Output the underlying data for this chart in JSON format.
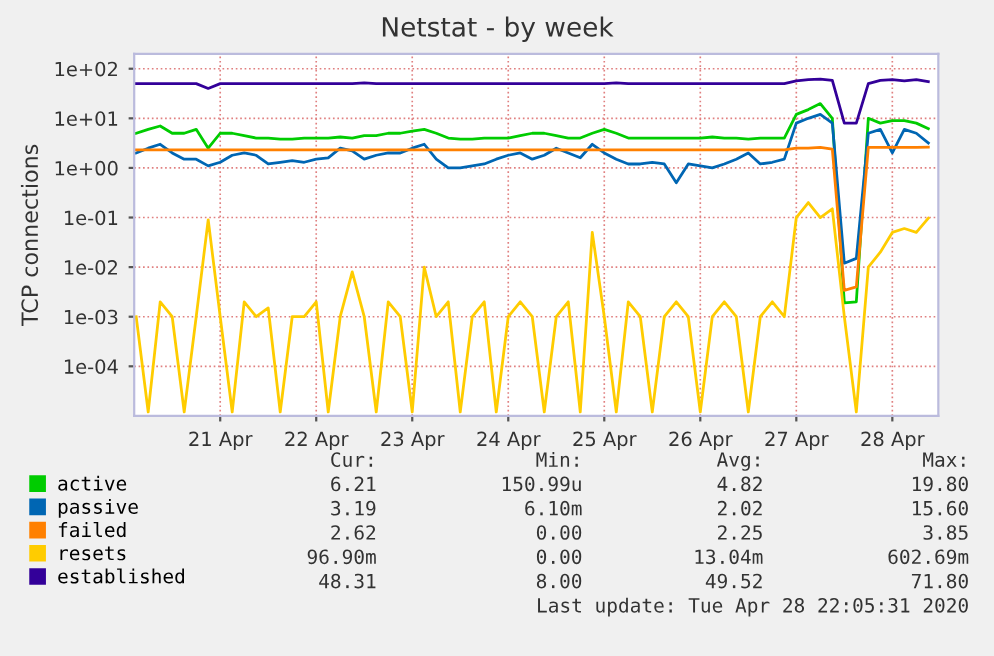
{
  "chart_data": {
    "type": "line",
    "title": "Netstat - by week",
    "ylabel": "TCP connections",
    "x": [
      "2020-04-20T15:00",
      "2020-04-20T18:00",
      "2020-04-20T21:00",
      "2020-04-21T00:00",
      "2020-04-21T03:00",
      "2020-04-21T06:00",
      "2020-04-21T09:00",
      "2020-04-21T12:00",
      "2020-04-21T15:00",
      "2020-04-21T18:00",
      "2020-04-21T21:00",
      "2020-04-22T00:00",
      "2020-04-22T03:00",
      "2020-04-22T06:00",
      "2020-04-22T09:00",
      "2020-04-22T12:00",
      "2020-04-22T15:00",
      "2020-04-22T18:00",
      "2020-04-22T21:00",
      "2020-04-23T00:00",
      "2020-04-23T03:00",
      "2020-04-23T06:00",
      "2020-04-23T09:00",
      "2020-04-23T12:00",
      "2020-04-23T15:00",
      "2020-04-23T18:00",
      "2020-04-23T21:00",
      "2020-04-24T00:00",
      "2020-04-24T03:00",
      "2020-04-24T06:00",
      "2020-04-24T09:00",
      "2020-04-24T12:00",
      "2020-04-24T15:00",
      "2020-04-24T18:00",
      "2020-04-24T21:00",
      "2020-04-25T00:00",
      "2020-04-25T03:00",
      "2020-04-25T06:00",
      "2020-04-25T09:00",
      "2020-04-25T12:00",
      "2020-04-25T15:00",
      "2020-04-25T18:00",
      "2020-04-25T21:00",
      "2020-04-26T00:00",
      "2020-04-26T03:00",
      "2020-04-26T06:00",
      "2020-04-26T09:00",
      "2020-04-26T12:00",
      "2020-04-26T15:00",
      "2020-04-26T18:00",
      "2020-04-26T21:00",
      "2020-04-27T00:00",
      "2020-04-27T03:00",
      "2020-04-27T06:00",
      "2020-04-27T09:00",
      "2020-04-27T12:00",
      "2020-04-27T15:00",
      "2020-04-27T18:00",
      "2020-04-27T21:00",
      "2020-04-28T00:00",
      "2020-04-28T03:00",
      "2020-04-28T06:00",
      "2020-04-28T09:00",
      "2020-04-28T12:00",
      "2020-04-28T15:00",
      "2020-04-28T18:00",
      "2020-04-28T21:00"
    ],
    "series": [
      {
        "name": "active",
        "color": "#00cc00",
        "values": [
          5,
          6,
          7,
          5,
          5,
          6,
          2.5,
          5,
          5,
          4.5,
          4,
          4,
          3.8,
          3.8,
          4,
          4,
          4,
          4.2,
          4,
          4.5,
          4.5,
          5,
          5,
          5.5,
          6,
          5,
          4,
          3.8,
          3.8,
          4,
          4,
          4,
          4.5,
          5,
          5,
          4.5,
          4,
          4,
          5,
          6,
          5,
          4,
          4,
          4,
          4,
          4,
          4,
          4,
          4.2,
          4,
          4,
          3.8,
          4,
          4,
          4,
          12,
          15,
          19.8,
          10,
          0.0019,
          0.002,
          10,
          8,
          9,
          9,
          8,
          6.2
        ]
      },
      {
        "name": "passive",
        "color": "#0066b3",
        "values": [
          2,
          2.5,
          3,
          2,
          1.5,
          1.5,
          1.1,
          1.3,
          1.8,
          2,
          1.8,
          1.2,
          1.3,
          1.4,
          1.3,
          1.5,
          1.6,
          2.5,
          2.2,
          1.5,
          1.8,
          2,
          2,
          2.5,
          3,
          1.5,
          1,
          1,
          1.1,
          1.2,
          1.5,
          1.8,
          2,
          1.5,
          1.8,
          2.5,
          2,
          1.6,
          3,
          2,
          1.5,
          1.2,
          1.2,
          1.3,
          1.2,
          0.5,
          1.2,
          1.1,
          1,
          1.2,
          1.5,
          2,
          1.2,
          1.3,
          1.5,
          8,
          10,
          12,
          8,
          0.012,
          0.015,
          5,
          6,
          2,
          6,
          5,
          3.19
        ]
      },
      {
        "name": "failed",
        "color": "#ff8000",
        "values": [
          2.3,
          2.3,
          2.3,
          2.3,
          2.3,
          2.3,
          2.3,
          2.3,
          2.3,
          2.3,
          2.3,
          2.3,
          2.3,
          2.3,
          2.3,
          2.3,
          2.3,
          2.3,
          2.3,
          2.3,
          2.3,
          2.3,
          2.3,
          2.3,
          2.3,
          2.3,
          2.3,
          2.3,
          2.3,
          2.3,
          2.3,
          2.3,
          2.3,
          2.3,
          2.3,
          2.3,
          2.3,
          2.3,
          2.3,
          2.3,
          2.3,
          2.3,
          2.3,
          2.3,
          2.3,
          2.3,
          2.3,
          2.3,
          2.3,
          2.3,
          2.3,
          2.3,
          2.3,
          2.3,
          2.3,
          2.5,
          2.5,
          2.6,
          2.4,
          0.0034,
          0.004,
          2.6,
          2.6,
          2.6,
          2.6,
          2.6,
          2.62
        ]
      },
      {
        "name": "resets",
        "color": "#ffcc00",
        "values": [
          0.001,
          1.2e-05,
          0.002,
          0.001,
          1.2e-05,
          0.001,
          0.09,
          0.001,
          1.2e-05,
          0.002,
          0.001,
          0.0015,
          1.2e-05,
          0.001,
          0.001,
          0.002,
          1.2e-05,
          0.001,
          0.008,
          0.001,
          1.2e-05,
          0.002,
          0.001,
          1.2e-05,
          0.01,
          0.001,
          0.002,
          1.2e-05,
          0.001,
          0.002,
          1.2e-05,
          0.001,
          0.002,
          0.001,
          1.2e-05,
          0.001,
          0.002,
          1.2e-05,
          0.05,
          0.001,
          1.2e-05,
          0.002,
          0.001,
          1.2e-05,
          0.001,
          0.002,
          0.001,
          1.2e-05,
          0.001,
          0.002,
          0.001,
          1.2e-05,
          0.001,
          0.002,
          0.001,
          0.1,
          0.2,
          0.1,
          0.15,
          0.001,
          1.2e-05,
          0.01,
          0.02,
          0.05,
          0.06,
          0.05,
          0.0969
        ]
      },
      {
        "name": "established",
        "color": "#330099",
        "values": [
          50,
          50,
          50,
          50,
          50,
          50,
          40,
          50,
          50,
          50,
          50,
          50,
          50,
          50,
          50,
          50,
          50,
          50,
          50,
          52,
          50,
          50,
          50,
          50,
          50,
          50,
          50,
          50,
          50,
          50,
          50,
          50,
          50,
          50,
          50,
          50,
          50,
          50,
          50,
          50,
          52,
          50,
          50,
          50,
          50,
          50,
          50,
          50,
          50,
          50,
          50,
          50,
          50,
          50,
          50,
          57,
          60,
          62,
          58,
          8,
          8,
          50,
          58,
          60,
          57,
          60,
          55
        ]
      }
    ],
    "log": "y",
    "ylim": [
      1e-05,
      200
    ],
    "yticks": [
      {
        "value": 0.0001,
        "label": "1e-04"
      },
      {
        "value": 0.001,
        "label": "1e-03"
      },
      {
        "value": 0.01,
        "label": "1e-02"
      },
      {
        "value": 0.1,
        "label": "1e-01"
      },
      {
        "value": 1,
        "label": "1e+00"
      },
      {
        "value": 10,
        "label": "1e+01"
      },
      {
        "value": 100,
        "label": "1e+02"
      }
    ],
    "xlim": [
      "2020-04-20T14:30",
      "2020-04-28T23:30"
    ],
    "xticks": [
      {
        "value": "2020-04-21T12:00",
        "label": "21 Apr"
      },
      {
        "value": "2020-04-22T12:00",
        "label": "22 Apr"
      },
      {
        "value": "2020-04-23T12:00",
        "label": "23 Apr"
      },
      {
        "value": "2020-04-24T12:00",
        "label": "24 Apr"
      },
      {
        "value": "2020-04-25T12:00",
        "label": "25 Apr"
      },
      {
        "value": "2020-04-26T12:00",
        "label": "26 Apr"
      },
      {
        "value": "2020-04-27T12:00",
        "label": "27 Apr"
      },
      {
        "value": "2020-04-28T12:00",
        "label": "28 Apr"
      }
    ],
    "grid": true,
    "legend": "bottom",
    "annotations": [
      "Cur:",
      "Min:",
      "Avg:",
      "Max:",
      "6.21",
      "150.99u",
      "4.82",
      "19.80",
      "3.19",
      "6.10m",
      "2.02",
      "15.60",
      "2.62",
      "0.00",
      "2.25",
      "3.85",
      "96.90m",
      "0.00",
      "13.04m",
      "602.69m",
      "48.31",
      "8.00",
      "49.52",
      "71.80",
      "Last update: Tue Apr 28 22:05:31 2020"
    ]
  }
}
